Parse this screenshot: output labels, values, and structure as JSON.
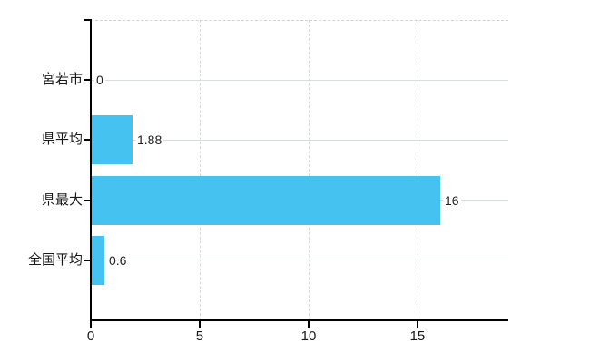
{
  "chart_data": {
    "type": "bar",
    "orientation": "horizontal",
    "title": "",
    "xlabel": "",
    "ylabel": "",
    "categories": [
      "宮若市",
      "県平均",
      "県最大",
      "全国平均"
    ],
    "values": [
      0,
      1.88,
      16,
      0.6
    ],
    "value_labels": [
      "0",
      "1.88",
      "16",
      "0.6"
    ],
    "xlim": [
      0,
      19.17
    ],
    "x_ticks": [
      0,
      5,
      10,
      15
    ],
    "x_tick_labels": [
      "0",
      "5",
      "10",
      "15"
    ],
    "grid": true,
    "legend": false,
    "colors": {
      "bar": "#45c2f0",
      "axis": "#000000",
      "gridline_horizontal": "#d7ddd7",
      "gridline_vertical": "#d9d9d9",
      "top_border": "#d4d0d8",
      "text": "#1a1a1a",
      "value_text": "#222222",
      "background": "#ffffff"
    }
  }
}
